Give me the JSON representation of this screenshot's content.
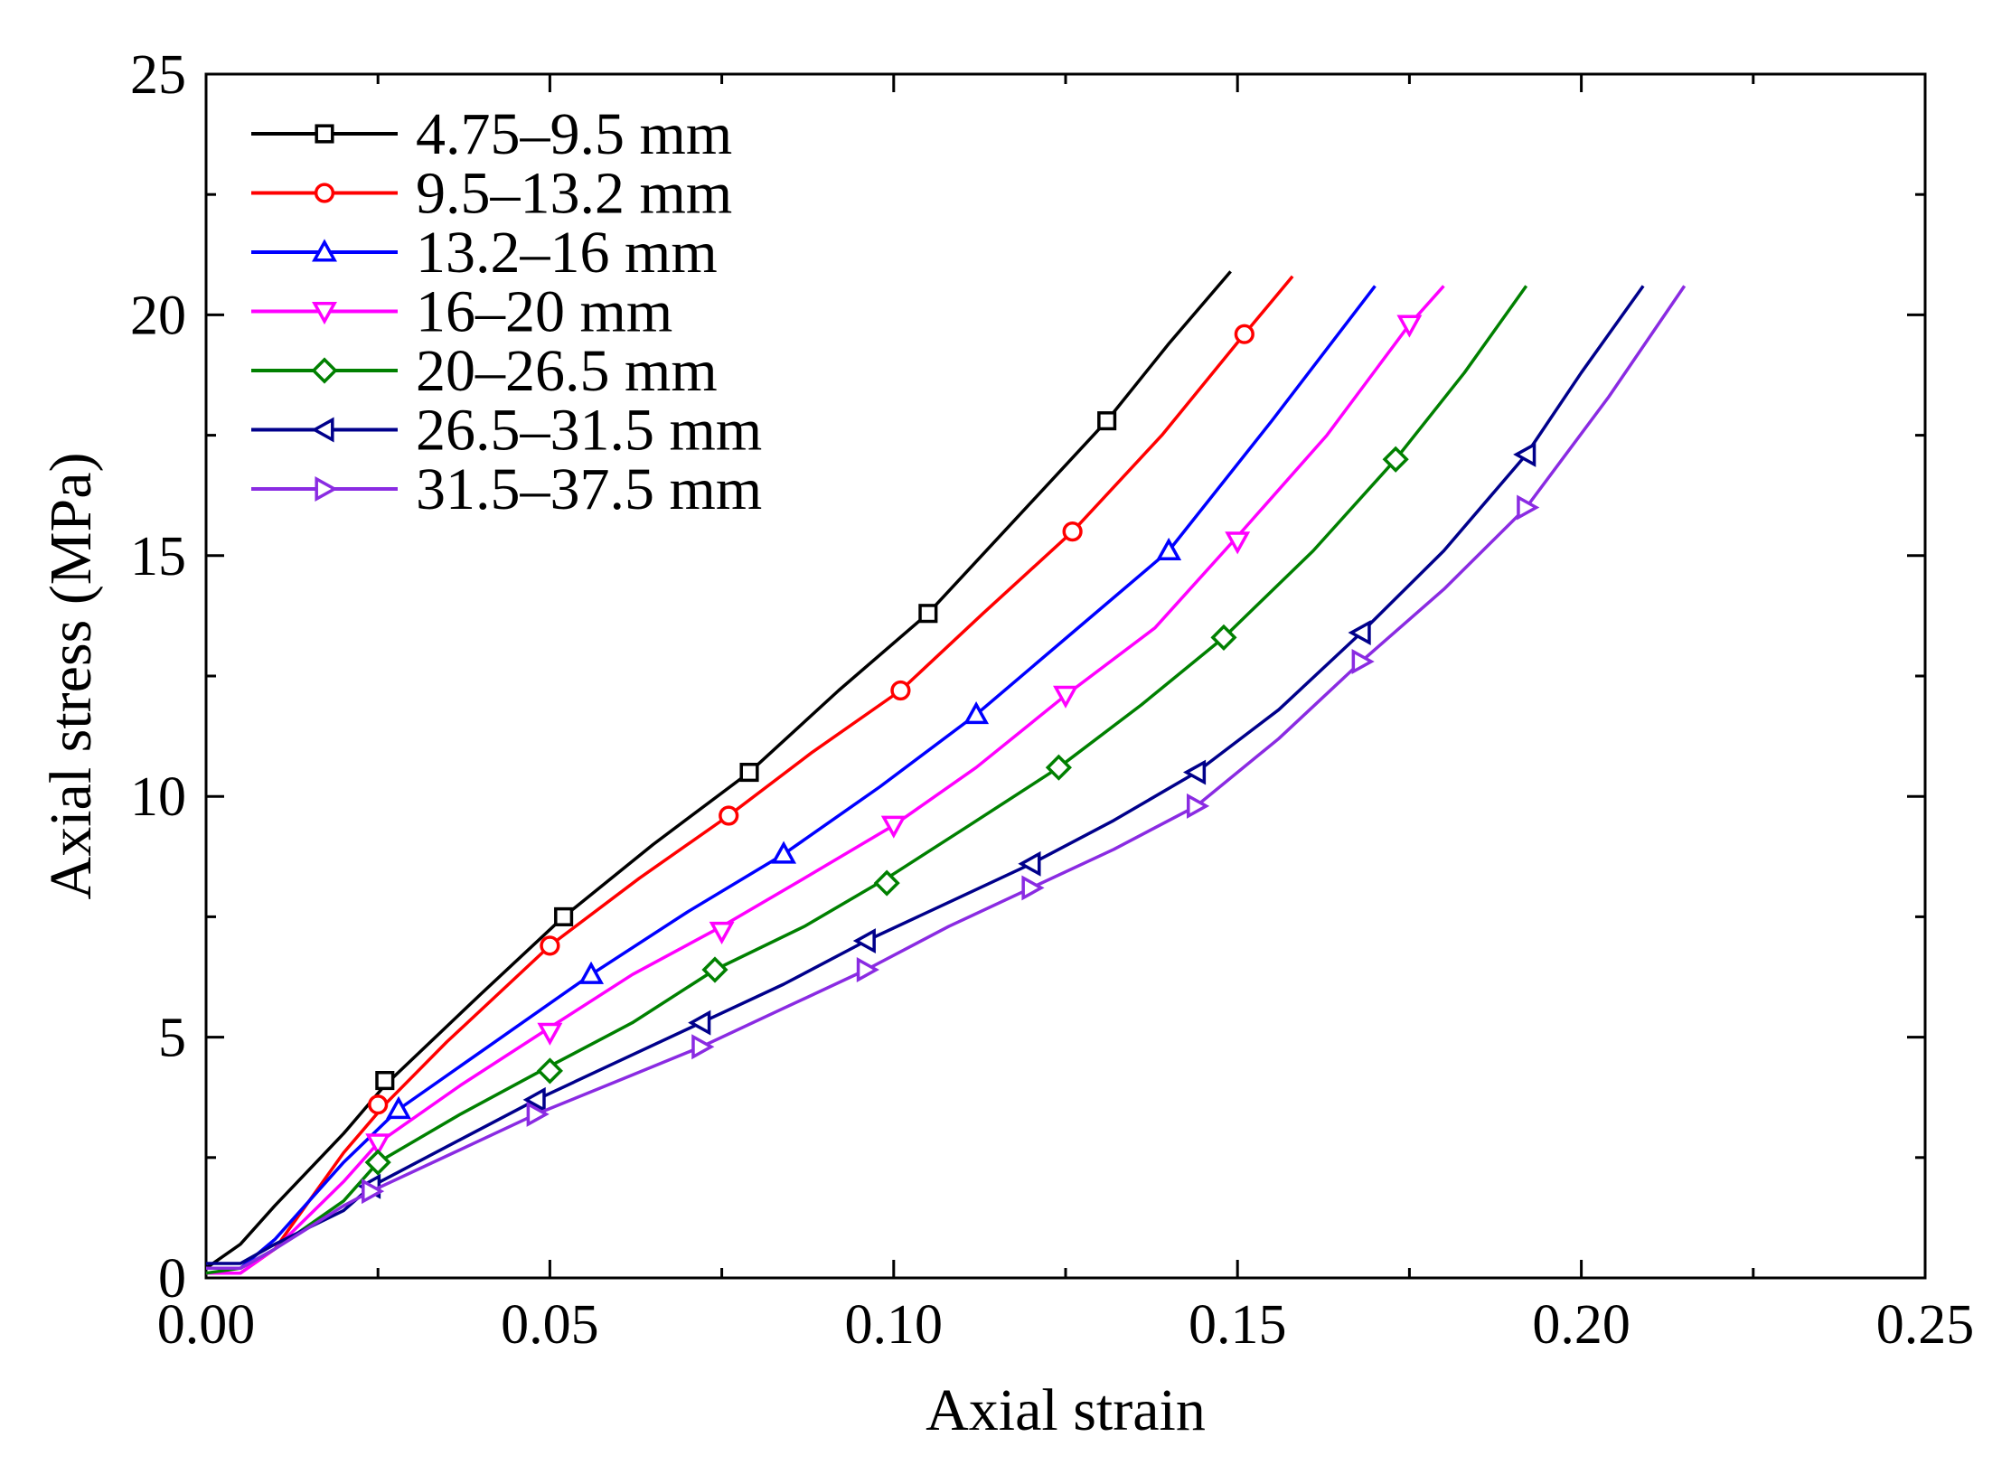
{
  "chart_data": {
    "type": "line",
    "title": "",
    "xlabel": "Axial strain",
    "ylabel": "Axial stress (MPa)",
    "xlim": [
      0,
      0.25
    ],
    "ylim": [
      0,
      25
    ],
    "xticks": [
      "0.00",
      "0.05",
      "0.10",
      "0.15",
      "0.20",
      "0.25"
    ],
    "yticks": [
      "0",
      "5",
      "10",
      "15",
      "20",
      "25"
    ],
    "grid": false,
    "legend_position": "top-left",
    "series": [
      {
        "name": "4.75–9.5 mm",
        "color": "#000000",
        "marker": "square",
        "points": [
          [
            0,
            0.2
          ],
          [
            0.005,
            0.7
          ],
          [
            0.01,
            1.5
          ],
          [
            0.02,
            3.0
          ],
          [
            0.026,
            4.0
          ],
          [
            0.04,
            5.9
          ],
          [
            0.052,
            7.5
          ],
          [
            0.065,
            9.0
          ],
          [
            0.079,
            10.5
          ],
          [
            0.092,
            12.2
          ],
          [
            0.105,
            13.8
          ],
          [
            0.118,
            15.8
          ],
          [
            0.131,
            17.8
          ],
          [
            0.14,
            19.4
          ],
          [
            0.149,
            20.9
          ]
        ],
        "markers": [
          [
            0.026,
            4.1
          ],
          [
            0.052,
            7.5
          ],
          [
            0.079,
            10.5
          ],
          [
            0.105,
            13.8
          ],
          [
            0.131,
            17.8
          ]
        ]
      },
      {
        "name": "9.5–13.2 mm",
        "color": "#ff0000",
        "marker": "circle",
        "points": [
          [
            0,
            0.1
          ],
          [
            0.005,
            0.1
          ],
          [
            0.01,
            0.6
          ],
          [
            0.015,
            1.6
          ],
          [
            0.02,
            2.6
          ],
          [
            0.026,
            3.6
          ],
          [
            0.035,
            4.9
          ],
          [
            0.05,
            6.9
          ],
          [
            0.063,
            8.3
          ],
          [
            0.076,
            9.6
          ],
          [
            0.088,
            10.9
          ],
          [
            0.101,
            12.2
          ],
          [
            0.113,
            13.8
          ],
          [
            0.126,
            15.5
          ],
          [
            0.139,
            17.5
          ],
          [
            0.151,
            19.6
          ],
          [
            0.158,
            20.8
          ]
        ],
        "markers": [
          [
            0.025,
            3.6
          ],
          [
            0.05,
            6.9
          ],
          [
            0.076,
            9.6
          ],
          [
            0.101,
            12.2
          ],
          [
            0.126,
            15.5
          ],
          [
            0.151,
            19.6
          ]
        ]
      },
      {
        "name": "13.2–16 mm",
        "color": "#0000ff",
        "marker": "triangle-up",
        "points": [
          [
            0,
            0.2
          ],
          [
            0.005,
            0.2
          ],
          [
            0.01,
            0.8
          ],
          [
            0.02,
            2.4
          ],
          [
            0.028,
            3.5
          ],
          [
            0.042,
            4.9
          ],
          [
            0.056,
            6.3
          ],
          [
            0.07,
            7.6
          ],
          [
            0.084,
            8.8
          ],
          [
            0.098,
            10.2
          ],
          [
            0.112,
            11.7
          ],
          [
            0.126,
            13.4
          ],
          [
            0.14,
            15.1
          ],
          [
            0.155,
            17.8
          ],
          [
            0.17,
            20.6
          ]
        ],
        "markers": [
          [
            0.028,
            3.5
          ],
          [
            0.056,
            6.3
          ],
          [
            0.084,
            8.8
          ],
          [
            0.112,
            11.7
          ],
          [
            0.14,
            15.1
          ]
        ]
      },
      {
        "name": "16–20 mm",
        "color": "#ff00ff",
        "marker": "triangle-down",
        "points": [
          [
            0,
            0.1
          ],
          [
            0.005,
            0.1
          ],
          [
            0.01,
            0.6
          ],
          [
            0.02,
            2.0
          ],
          [
            0.025,
            2.8
          ],
          [
            0.037,
            4.0
          ],
          [
            0.05,
            5.2
          ],
          [
            0.062,
            6.3
          ],
          [
            0.075,
            7.3
          ],
          [
            0.087,
            8.3
          ],
          [
            0.1,
            9.4
          ],
          [
            0.112,
            10.6
          ],
          [
            0.125,
            12.1
          ],
          [
            0.138,
            13.5
          ],
          [
            0.15,
            15.4
          ],
          [
            0.163,
            17.5
          ],
          [
            0.175,
            19.8
          ],
          [
            0.18,
            20.6
          ]
        ],
        "markers": [
          [
            0.025,
            2.8
          ],
          [
            0.05,
            5.1
          ],
          [
            0.075,
            7.2
          ],
          [
            0.1,
            9.4
          ],
          [
            0.125,
            12.1
          ],
          [
            0.15,
            15.3
          ],
          [
            0.175,
            19.8
          ]
        ]
      },
      {
        "name": "20–26.5 mm",
        "color": "#008000",
        "marker": "diamond",
        "points": [
          [
            0,
            0.1
          ],
          [
            0.005,
            0.2
          ],
          [
            0.01,
            0.6
          ],
          [
            0.02,
            1.6
          ],
          [
            0.025,
            2.4
          ],
          [
            0.037,
            3.4
          ],
          [
            0.05,
            4.4
          ],
          [
            0.062,
            5.3
          ],
          [
            0.074,
            6.4
          ],
          [
            0.087,
            7.3
          ],
          [
            0.099,
            8.3
          ],
          [
            0.111,
            9.4
          ],
          [
            0.124,
            10.6
          ],
          [
            0.136,
            11.9
          ],
          [
            0.148,
            13.3
          ],
          [
            0.161,
            15.1
          ],
          [
            0.173,
            17.0
          ],
          [
            0.183,
            18.8
          ],
          [
            0.192,
            20.6
          ]
        ],
        "markers": [
          [
            0.025,
            2.4
          ],
          [
            0.05,
            4.3
          ],
          [
            0.074,
            6.4
          ],
          [
            0.099,
            8.2
          ],
          [
            0.124,
            10.6
          ],
          [
            0.148,
            13.3
          ],
          [
            0.173,
            17.0
          ]
        ]
      },
      {
        "name": "26.5–31.5 mm",
        "color": "#00008b",
        "marker": "triangle-left",
        "points": [
          [
            0,
            0.3
          ],
          [
            0.005,
            0.3
          ],
          [
            0.01,
            0.7
          ],
          [
            0.02,
            1.4
          ],
          [
            0.024,
            1.9
          ],
          [
            0.036,
            2.8
          ],
          [
            0.048,
            3.7
          ],
          [
            0.06,
            4.5
          ],
          [
            0.072,
            5.3
          ],
          [
            0.084,
            6.1
          ],
          [
            0.096,
            7.0
          ],
          [
            0.108,
            7.8
          ],
          [
            0.12,
            8.6
          ],
          [
            0.132,
            9.5
          ],
          [
            0.144,
            10.5
          ],
          [
            0.156,
            11.8
          ],
          [
            0.168,
            13.4
          ],
          [
            0.18,
            15.1
          ],
          [
            0.192,
            17.1
          ],
          [
            0.2,
            18.8
          ],
          [
            0.209,
            20.6
          ]
        ],
        "markers": [
          [
            0.024,
            1.9
          ],
          [
            0.048,
            3.7
          ],
          [
            0.072,
            5.3
          ],
          [
            0.096,
            7.0
          ],
          [
            0.12,
            8.6
          ],
          [
            0.144,
            10.5
          ],
          [
            0.168,
            13.4
          ],
          [
            0.192,
            17.1
          ]
        ]
      },
      {
        "name": "31.5–37.5 mm",
        "color": "#8a2be2",
        "marker": "triangle-right",
        "points": [
          [
            0,
            0.2
          ],
          [
            0.005,
            0.2
          ],
          [
            0.01,
            0.6
          ],
          [
            0.02,
            1.5
          ],
          [
            0.024,
            1.8
          ],
          [
            0.036,
            2.6
          ],
          [
            0.048,
            3.4
          ],
          [
            0.06,
            4.1
          ],
          [
            0.072,
            4.8
          ],
          [
            0.084,
            5.6
          ],
          [
            0.096,
            6.4
          ],
          [
            0.108,
            7.3
          ],
          [
            0.12,
            8.1
          ],
          [
            0.132,
            8.9
          ],
          [
            0.144,
            9.8
          ],
          [
            0.156,
            11.2
          ],
          [
            0.168,
            12.8
          ],
          [
            0.18,
            14.3
          ],
          [
            0.192,
            16.0
          ],
          [
            0.204,
            18.3
          ],
          [
            0.215,
            20.6
          ]
        ],
        "markers": [
          [
            0.024,
            1.8
          ],
          [
            0.048,
            3.4
          ],
          [
            0.072,
            4.8
          ],
          [
            0.096,
            6.4
          ],
          [
            0.12,
            8.1
          ],
          [
            0.144,
            9.8
          ],
          [
            0.168,
            12.8
          ],
          [
            0.192,
            16.0
          ]
        ]
      }
    ]
  }
}
